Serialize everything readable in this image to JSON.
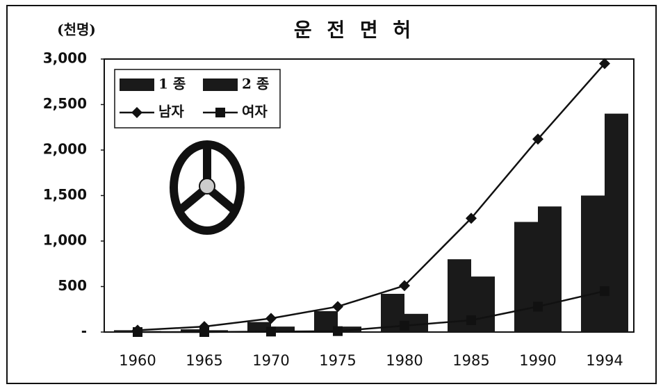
{
  "chart_data": {
    "type": "bar",
    "title": "운 전 면 허",
    "unit": "(천명)",
    "categories": [
      "1960",
      "1965",
      "1970",
      "1975",
      "1980",
      "1985",
      "1990",
      "1994"
    ],
    "series": [
      {
        "name": "1 종",
        "type": "bar",
        "color": "#1a1a1a",
        "values": [
          20,
          30,
          110,
          230,
          420,
          800,
          1210,
          1500
        ]
      },
      {
        "name": "2 종",
        "type": "bar",
        "color": "#1a1a1a",
        "values": [
          10,
          20,
          60,
          60,
          200,
          610,
          1380,
          2400
        ]
      },
      {
        "name": "남자",
        "type": "line",
        "marker": "diamond",
        "color": "#111111",
        "values": [
          20,
          60,
          150,
          280,
          510,
          1250,
          2120,
          2950
        ]
      },
      {
        "name": "여자",
        "type": "line",
        "marker": "square",
        "color": "#111111",
        "values": [
          0,
          0,
          5,
          10,
          70,
          130,
          280,
          450
        ]
      }
    ],
    "ylim": [
      0,
      3000
    ],
    "yticks": [
      {
        "value": 0,
        "label": "-"
      },
      500,
      {
        "value": 1000,
        "label": "1,000"
      },
      {
        "value": 1500,
        "label": "1,500"
      },
      {
        "value": 2000,
        "label": "2,000"
      },
      {
        "value": 2500,
        "label": "2,500"
      },
      {
        "value": 3000,
        "label": "3,000"
      }
    ],
    "grid": false
  }
}
